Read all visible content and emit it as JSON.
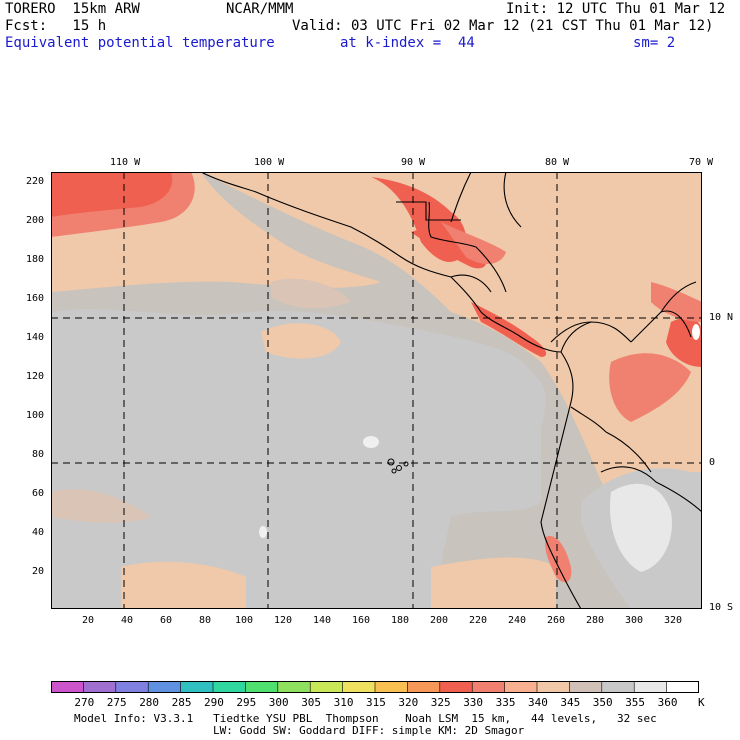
{
  "header": {
    "model": "TORERO  15km ARW",
    "center": "NCAR/MMM",
    "init": "Init: 12 UTC Thu 01 Mar 12",
    "fcst": "Fcst:   15 h",
    "valid": "Valid: 03 UTC Fri 02 Mar 12 (21 CST Thu 01 Mar 12)",
    "field": "Equivalent potential temperature",
    "level": "at k-index =  44",
    "smooth": "sm= 2"
  },
  "map": {
    "top_lon_labels": [
      "110 W",
      "100 W",
      "90 W",
      "80 W",
      "70 W"
    ],
    "right_lat_labels": [
      "10 N",
      "0",
      "10 S"
    ],
    "y_ticks": [
      "220",
      "200",
      "180",
      "160",
      "140",
      "120",
      "100",
      "80",
      "60",
      "40",
      "20"
    ],
    "x_ticks": [
      "20",
      "40",
      "60",
      "80",
      "100",
      "120",
      "140",
      "160",
      "180",
      "200",
      "220",
      "240",
      "260",
      "280",
      "300",
      "320"
    ]
  },
  "colorbar": {
    "units": "K",
    "labels": [
      "270",
      "275",
      "280",
      "285",
      "290",
      "295",
      "300",
      "305",
      "310",
      "315",
      "320",
      "325",
      "330",
      "335",
      "340",
      "345",
      "350",
      "355",
      "360"
    ],
    "colors": [
      "#cc55cc",
      "#a070d0",
      "#8080e0",
      "#6090e0",
      "#30c0c0",
      "#30d8a0",
      "#50e070",
      "#90e060",
      "#c8e858",
      "#f0e060",
      "#f8c050",
      "#f89858",
      "#f06050",
      "#f08070",
      "#f8b090",
      "#f0c8a8",
      "#d0c0b8",
      "#c8c8c8",
      "#e8e8e8",
      "#ffffff"
    ]
  },
  "footer": {
    "line1": "Model Info: V3.3.1   Tiedtke YSU PBL  Thompson    Noah LSM  15 km,   44 levels,   32 sec",
    "line2": "LW: Godd SW: Goddard DIFF: simple KM: 2D Smagor"
  }
}
